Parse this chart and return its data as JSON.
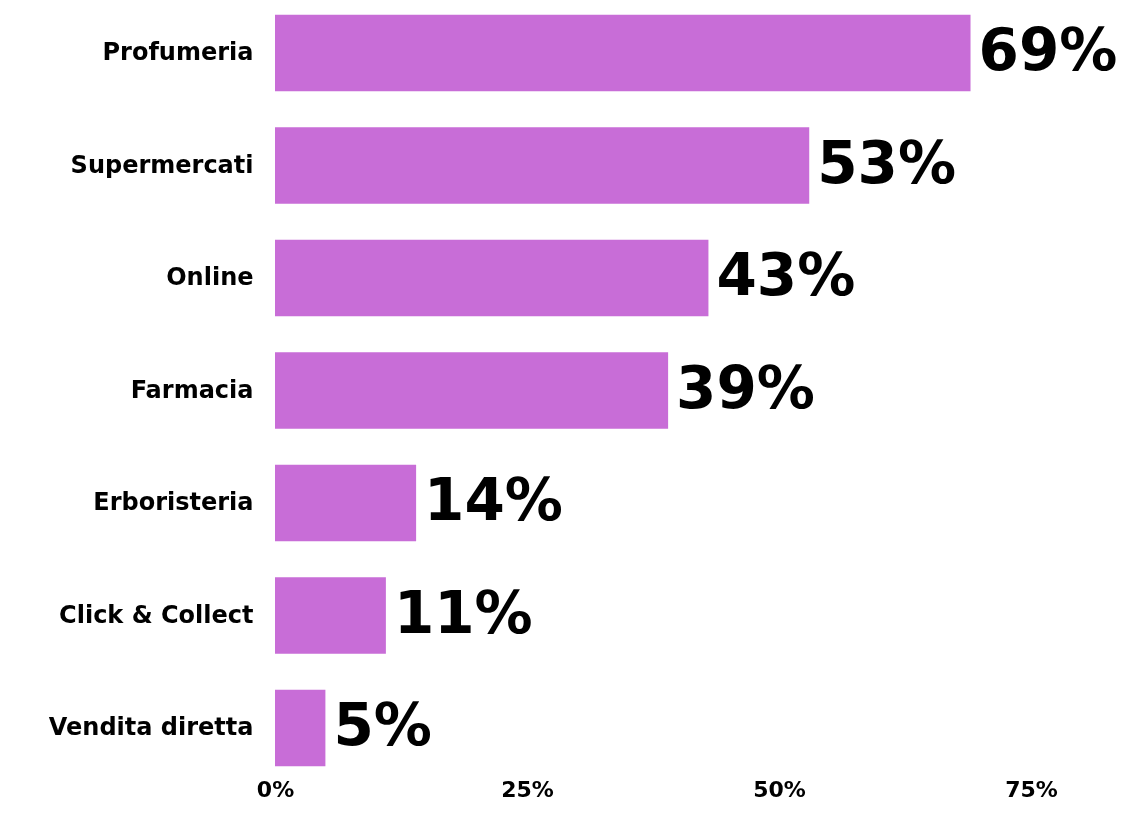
{
  "chart_data": {
    "type": "bar",
    "orientation": "horizontal",
    "categories": [
      "Profumeria",
      "Supermercati",
      "Online",
      "Farmacia",
      "Erboristeria",
      "Click & Collect",
      "Vendita diretta"
    ],
    "values": [
      69,
      53,
      43,
      39,
      14,
      11,
      5
    ],
    "color": "#c86dd7",
    "value_labels": [
      "69%",
      "53%",
      "43%",
      "39%",
      "14%",
      "11%",
      "5%"
    ],
    "xlim": [
      0,
      75
    ],
    "xticks": [
      {
        "value": 0,
        "label": "0%"
      },
      {
        "value": 25,
        "label": "25%"
      },
      {
        "value": 50,
        "label": "50%"
      },
      {
        "value": 75,
        "label": "75%"
      }
    ],
    "grid": false
  }
}
